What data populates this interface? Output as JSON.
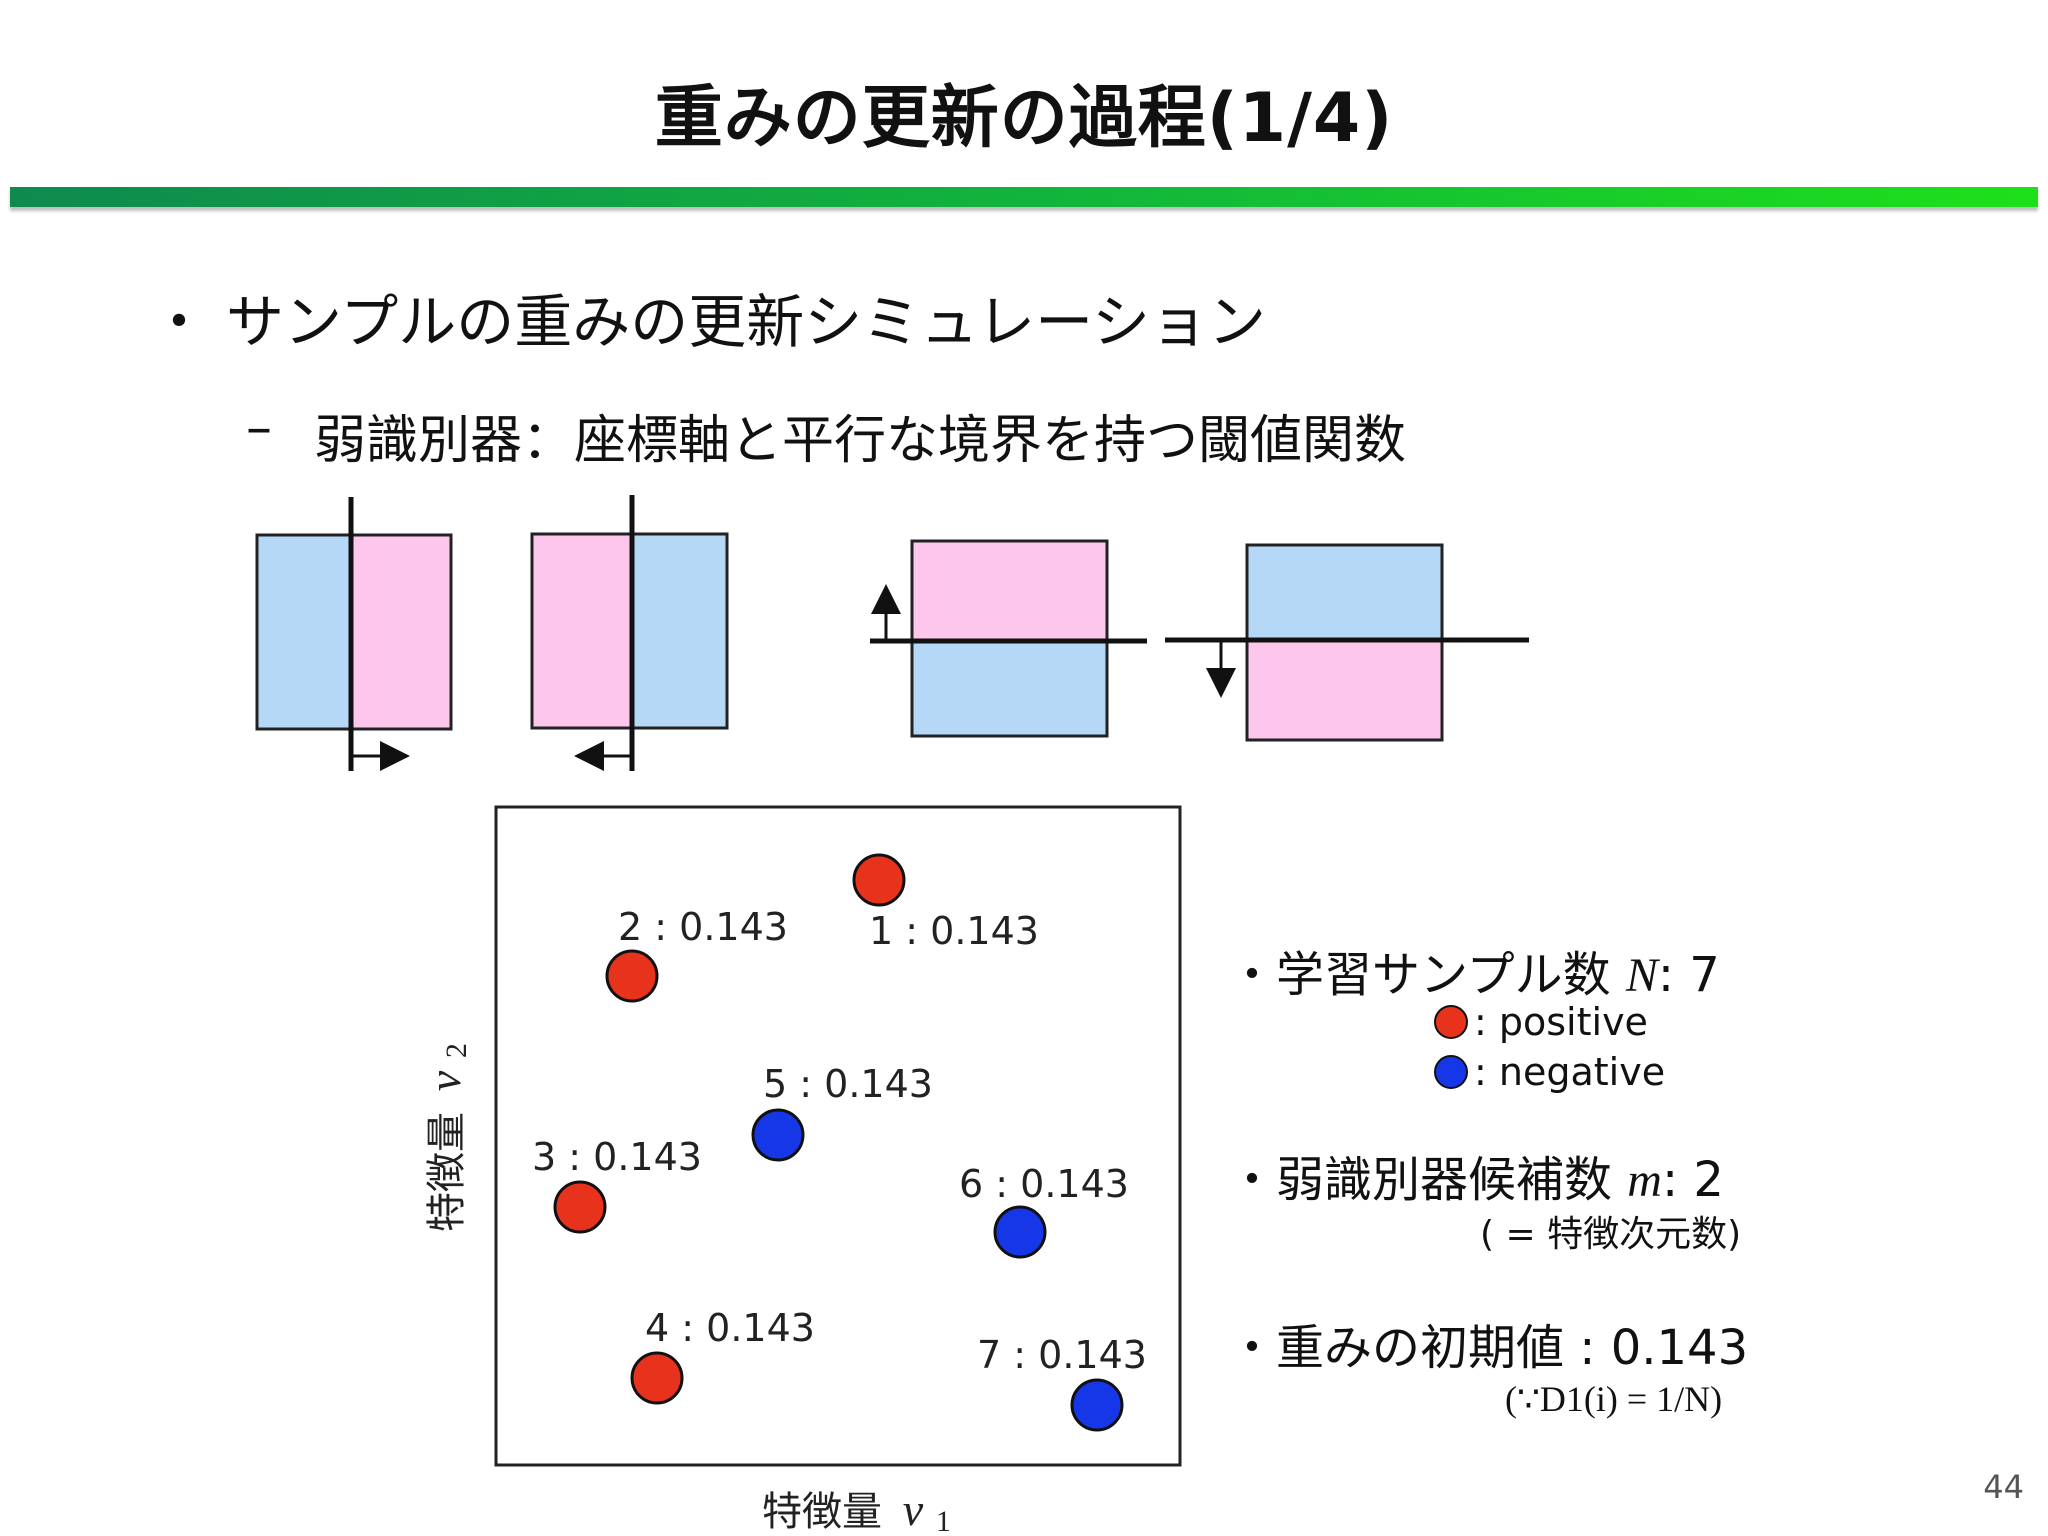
{
  "slide": {
    "title": "重みの更新の過程(1/4)",
    "page_number": "44"
  },
  "bullets": {
    "main": {
      "marker": "・",
      "text": "サンプルの重みの更新シミュレーション"
    },
    "sub": {
      "marker": "–",
      "text": "弱識別器：座標軸と平行な境界を持つ閾値関数"
    }
  },
  "colors": {
    "positive": "#e8331c",
    "negative": "#1537e8",
    "region_pink": "#fdc6ec",
    "region_blue": "#b6d8f7",
    "title_bar_start": "#0e8a4e",
    "title_bar_end": "#1ee01a"
  },
  "weak_classifiers": [
    {
      "orientation": "vertical",
      "left": "negative",
      "right": "positive",
      "arrow": "right"
    },
    {
      "orientation": "vertical",
      "left": "positive",
      "right": "negative",
      "arrow": "left"
    },
    {
      "orientation": "horizontal",
      "top": "positive",
      "bottom": "negative",
      "arrow": "up"
    },
    {
      "orientation": "horizontal",
      "top": "negative",
      "bottom": "positive",
      "arrow": "down"
    }
  ],
  "scatter": {
    "xlabel_prefix": "特徴量",
    "xlabel_var": "v",
    "xlabel_sub": "1",
    "ylabel_prefix": "特徴量",
    "ylabel_var": "v",
    "ylabel_sub": "2",
    "samples": [
      {
        "id": 1,
        "label": "1 : 0.143",
        "class": "positive",
        "weight": 0.143
      },
      {
        "id": 2,
        "label": "2 : 0.143",
        "class": "positive",
        "weight": 0.143
      },
      {
        "id": 3,
        "label": "3 : 0.143",
        "class": "positive",
        "weight": 0.143
      },
      {
        "id": 4,
        "label": "4 : 0.143",
        "class": "positive",
        "weight": 0.143
      },
      {
        "id": 5,
        "label": "5 : 0.143",
        "class": "negative",
        "weight": 0.143
      },
      {
        "id": 6,
        "label": "6 : 0.143",
        "class": "negative",
        "weight": 0.143
      },
      {
        "id": 7,
        "label": "7 : 0.143",
        "class": "negative",
        "weight": 0.143
      }
    ]
  },
  "info": {
    "samples": {
      "marker": "・",
      "text": "学習サンプル数",
      "var": "N",
      "value": ": 7"
    },
    "legend": [
      {
        "class": "positive",
        "text": ": positive"
      },
      {
        "class": "negative",
        "text": ": negative"
      }
    ],
    "candidates": {
      "marker": "・",
      "text": "弱識別器候補数",
      "var": "m",
      "value": ": 2",
      "note": "( = 特徴次元数)"
    },
    "initial": {
      "marker": "・",
      "text": "重みの初期値 : 0.143",
      "note": "(∵D1(i) = 1/N)"
    }
  }
}
